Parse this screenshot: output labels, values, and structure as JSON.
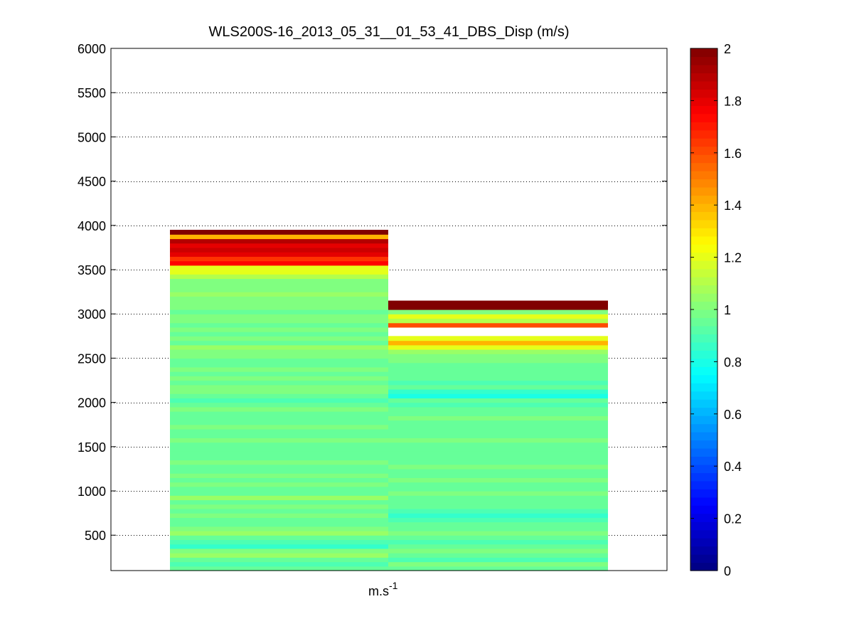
{
  "chart_data": {
    "type": "heatmap",
    "title": "WLS200S-16_2013_05_31__01_53_41_DBS_Disp (m/s)",
    "xlabel": "m.s",
    "xlabel_sup": "-1",
    "ylabel": "",
    "ylim": [
      100,
      6000
    ],
    "yticks": [
      500,
      1000,
      1500,
      2000,
      2500,
      3000,
      3500,
      4000,
      4500,
      5000,
      5500,
      6000
    ],
    "grid": "horizontal dotted",
    "colormap": "jet",
    "clim": [
      0,
      2
    ],
    "colorbar_ticks": [
      0,
      0.2,
      0.4,
      0.6,
      0.8,
      1,
      1.2,
      1.4,
      1.6,
      1.8,
      2
    ],
    "columns": 2,
    "altitude_start": 100,
    "altitude_step": 50,
    "series": [
      {
        "values": [
          0.95,
          0.9,
          0.95,
          1.05,
          1.0,
          0.85,
          0.9,
          0.95,
          1.05,
          1.0,
          0.95,
          0.95,
          1.0,
          0.95,
          1.0,
          0.95,
          1.05,
          0.95,
          0.95,
          1.0,
          0.95,
          1.0,
          0.95,
          0.95,
          1.0,
          0.95,
          0.95,
          0.95,
          0.95,
          1.0,
          0.95,
          0.95,
          1.0,
          0.95,
          0.95,
          0.95,
          1.0,
          0.95,
          0.9,
          0.95,
          1.0,
          1.0,
          0.95,
          1.0,
          0.95,
          1.0,
          0.95,
          0.95,
          1.0,
          1.0,
          1.05,
          0.95,
          1.0,
          0.95,
          1.0,
          0.95,
          1.0,
          1.0,
          0.95,
          1.0,
          1.0,
          1.0,
          1.05,
          1.0,
          1.0,
          1.0,
          1.1,
          1.2,
          1.2,
          1.75,
          1.65,
          1.8,
          1.85,
          1.8,
          1.9,
          1.4,
          2.0
        ]
      },
      {
        "values": [
          0.95,
          1.0,
          0.9,
          0.95,
          1.0,
          0.95,
          0.9,
          0.95,
          1.0,
          0.95,
          0.95,
          0.9,
          0.85,
          0.9,
          0.95,
          0.95,
          0.95,
          1.0,
          0.95,
          0.95,
          1.0,
          0.95,
          0.95,
          1.0,
          0.95,
          0.95,
          0.95,
          0.95,
          0.95,
          1.0,
          0.95,
          0.95,
          0.95,
          0.95,
          1.0,
          0.95,
          0.95,
          0.9,
          0.95,
          0.8,
          0.85,
          0.95,
          0.9,
          0.95,
          0.95,
          0.95,
          0.95,
          1.0,
          1.0,
          1.05,
          1.2,
          1.4,
          1.2,
          null,
          null,
          1.6,
          1.1,
          1.2,
          1.0,
          2.0,
          2.0
        ]
      }
    ]
  }
}
